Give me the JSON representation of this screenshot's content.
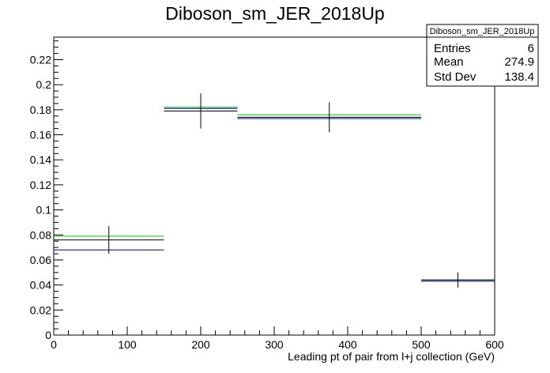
{
  "chart_data": {
    "type": "histogram",
    "title": "Diboson_sm_JER_2018Up",
    "xlabel": "Leading pt of pair from l+j collection (GeV)",
    "ylabel": "",
    "xlim": [
      0,
      600
    ],
    "ylim": [
      0,
      0.238
    ],
    "x_ticks": [
      0,
      100,
      200,
      300,
      400,
      500,
      600
    ],
    "y_ticks": [
      0,
      0.02,
      0.04,
      0.06,
      0.08,
      0.1,
      0.12,
      0.14,
      0.16,
      0.18,
      0.2,
      0.22
    ],
    "bin_edges": [
      0,
      150,
      250,
      500,
      600
    ],
    "series": [
      {
        "color": "#000000",
        "values": [
          0.076,
          0.179,
          0.174,
          0.044
        ],
        "errors": [
          0.011,
          0.014,
          0.012,
          0.006
        ]
      },
      {
        "color": "#00cc00",
        "values": [
          0.079,
          0.182,
          0.176,
          0.044
        ]
      },
      {
        "color": "#0000aa",
        "values": [
          0.068,
          0.181,
          0.173,
          0.043
        ]
      }
    ],
    "grid": false,
    "legend": "none",
    "stats_box": {
      "title": "Diboson_sm_JER_2018Up",
      "entries_label": "Entries",
      "entries_value": "6",
      "mean_label": "Mean",
      "mean_value": "274.9",
      "stddev_label": "Std Dev",
      "stddev_value": "138.4"
    }
  }
}
